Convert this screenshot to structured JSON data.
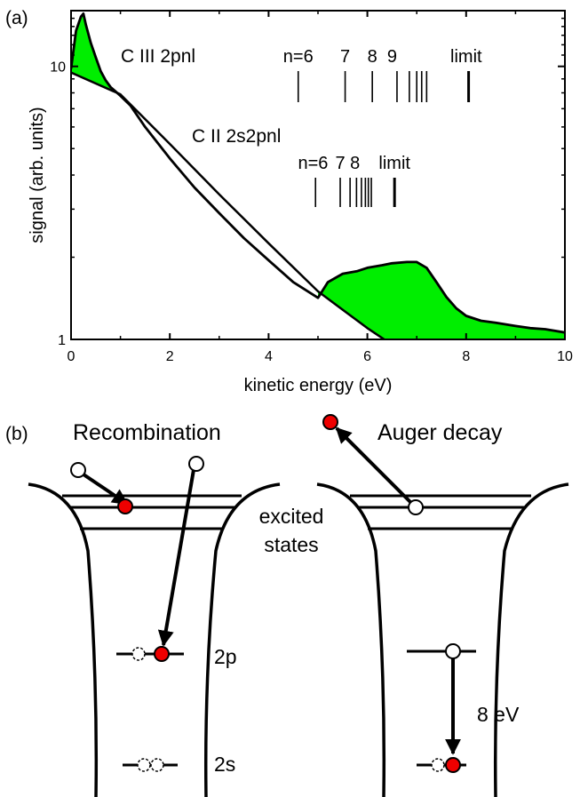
{
  "panel_a": {
    "label": "(a)",
    "chart_data": {
      "type": "area",
      "xlabel": "kinetic energy (eV)",
      "ylabel": "signal (arb. units)",
      "xlim": [
        0,
        10
      ],
      "ylim": [
        1,
        16
      ],
      "yscale": "log",
      "xticks": [
        "0",
        "2",
        "4",
        "6",
        "8",
        "10"
      ],
      "yticks": [
        "1",
        "10"
      ],
      "fill_color": "#00ee00",
      "series": [
        {
          "x": [
            0.0,
            0.1,
            0.2,
            0.25,
            0.3,
            0.4,
            0.5,
            0.6,
            0.7,
            0.8,
            0.9,
            1.0,
            1.2,
            1.5,
            2.0,
            2.5,
            3.0,
            3.5,
            4.0,
            4.5,
            5.0,
            5.2,
            5.5,
            5.8,
            6.0,
            6.3,
            6.5,
            6.8,
            7.0,
            7.2,
            7.4,
            7.6,
            7.8,
            8.0,
            8.3,
            8.6,
            9.0,
            9.3,
            9.6,
            10.0
          ],
          "y": [
            9.8,
            13.5,
            15.2,
            15.6,
            14.2,
            12.2,
            10.8,
            9.6,
            8.9,
            8.4,
            8.1,
            7.8,
            7.2,
            6.0,
            4.6,
            3.6,
            2.9,
            2.35,
            1.95,
            1.62,
            1.42,
            1.62,
            1.74,
            1.78,
            1.83,
            1.87,
            1.9,
            1.92,
            1.92,
            1.83,
            1.62,
            1.43,
            1.3,
            1.22,
            1.17,
            1.15,
            1.12,
            1.1,
            1.09,
            1.06
          ]
        },
        {
          "x": [
            0.0,
            1.0,
            2.0,
            3.0,
            4.0,
            5.0,
            6.0,
            6.8
          ],
          "y": [
            9.5,
            7.9,
            5.2,
            3.4,
            2.25,
            1.5,
            1.1,
            0.88
          ]
        }
      ],
      "annotations": [
        {
          "title": "C III  2pnl",
          "labels": [
            {
              "text": "n=6",
              "x": 4.6
            },
            {
              "text": "7",
              "x": 5.55
            },
            {
              "text": "8",
              "x": 6.1
            },
            {
              "text": "9",
              "x": 6.5
            },
            {
              "text": "limit",
              "x": 8.0
            }
          ],
          "ticks": [
            4.6,
            5.55,
            6.1,
            6.6,
            6.85,
            7.0,
            7.1,
            7.2,
            8.05
          ]
        },
        {
          "title": "C II  2s2pnl",
          "labels": [
            {
              "text": "n=6",
              "x": 4.9
            },
            {
              "text": "7",
              "x": 5.45
            },
            {
              "text": "8",
              "x": 5.75
            },
            {
              "text": "limit",
              "x": 6.55
            }
          ],
          "ticks": [
            4.95,
            5.45,
            5.65,
            5.78,
            5.88,
            5.96,
            6.02,
            6.08,
            6.55
          ]
        }
      ]
    }
  },
  "panel_b": {
    "label": "(b)",
    "recombination_title": "Recombination",
    "auger_title": "Auger decay",
    "excited_states_label_1": "excited",
    "excited_states_label_2": "states",
    "level_2p": "2p",
    "level_2s": "2s",
    "energy_label": "8 eV"
  }
}
